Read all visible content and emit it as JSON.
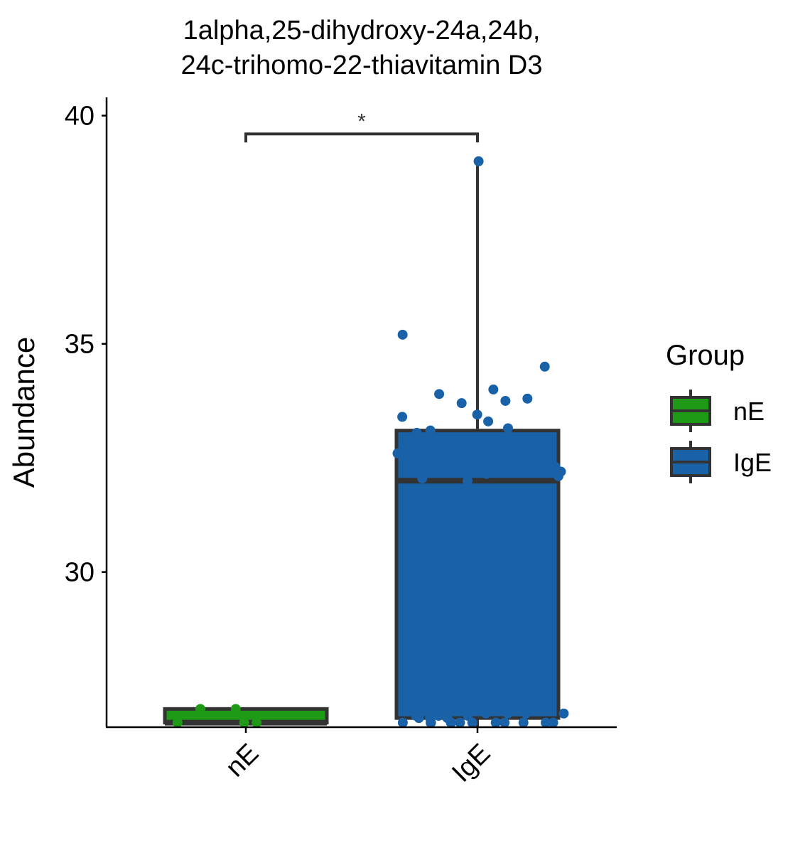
{
  "chart_data": {
    "type": "box",
    "title_lines": [
      "1alpha,25-dihydroxy-24a,24b,",
      "24c-trihomo-22-thiavitamin D3"
    ],
    "xlabel": "",
    "ylabel": "Abundance",
    "ylim": [
      26.6,
      40.4
    ],
    "yticks": [
      "30",
      "35",
      "40"
    ],
    "categories": [
      "nE",
      "IgE"
    ],
    "legend": {
      "title": "Group",
      "position": "right",
      "items": [
        {
          "label": "nE",
          "color": "#1f9a16"
        },
        {
          "label": "IgE",
          "color": "#1a62a8"
        }
      ]
    },
    "boxes": [
      {
        "group": "nE",
        "color": "#1f9a16",
        "whisker_low": 26.7,
        "q1": 26.7,
        "median": 26.7,
        "q3": 27.0,
        "whisker_high": 27.0
      },
      {
        "group": "IgE",
        "color": "#1a62a8",
        "whisker_low": 26.6,
        "q1": 26.8,
        "median": 32.0,
        "q3": 33.1,
        "whisker_high": 38.9
      }
    ],
    "points": [
      {
        "group": "nE",
        "values": [
          26.7,
          26.7,
          26.7,
          27.0,
          27.0
        ]
      },
      {
        "group": "IgE",
        "values": [
          39.0,
          35.2,
          34.5,
          34.0,
          33.7,
          33.9,
          33.8,
          33.75,
          33.4,
          33.45,
          33.1,
          33.15,
          33.05,
          33.3,
          32.5,
          32.4,
          32.6,
          32.3,
          32.2,
          32.25,
          32.0,
          32.1,
          32.05,
          32.35,
          32.15,
          26.9,
          26.85,
          26.8,
          26.9,
          26.85,
          26.8,
          26.9,
          26.8,
          26.85,
          26.9,
          26.7,
          26.7,
          26.7,
          26.7,
          26.7,
          26.7,
          26.7,
          26.7,
          26.7,
          26.7,
          26.7,
          26.7
        ]
      }
    ],
    "significance": {
      "groups": [
        "nE",
        "IgE"
      ],
      "label": "*",
      "y": 39.6
    }
  }
}
